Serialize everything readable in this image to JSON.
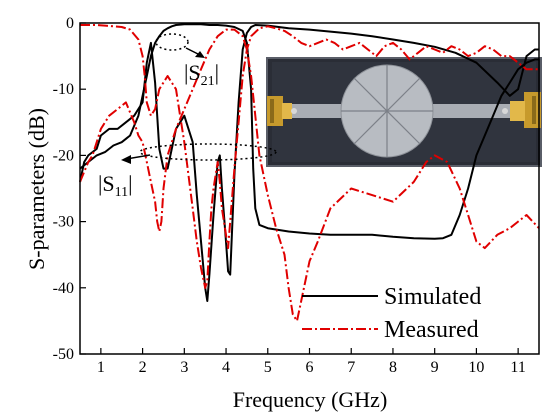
{
  "chart_data": {
    "type": "line",
    "title": "",
    "xlabel": "Frequency (GHz)",
    "ylabel": "S-parameters (dB)",
    "xlim": [
      0.5,
      11.5
    ],
    "ylim": [
      -50,
      0
    ],
    "xticks": [
      1,
      2,
      3,
      4,
      5,
      6,
      7,
      8,
      9,
      10,
      11
    ],
    "yticks": [
      0,
      -10,
      -20,
      -30,
      -40,
      -50
    ],
    "grid": false,
    "legend_position": "bottom-right",
    "annotations": [
      {
        "text": "|S",
        "sub": "21",
        "close": "|"
      },
      {
        "text": "|S",
        "sub": "11",
        "close": "|"
      }
    ],
    "inset": "photograph of fabricated filter: grey rectangular substrate with circular radial-stub resonator and SMA connectors",
    "series": [
      {
        "name": "Simulated",
        "color": "#000000",
        "style": "solid",
        "traces": {
          "S21": {
            "x": [
              0.5,
              0.7,
              0.9,
              1.1,
              1.3,
              1.5,
              1.7,
              1.9,
              2.0,
              2.1,
              2.2,
              2.3,
              2.4,
              2.5,
              2.6,
              2.7,
              2.8,
              3.0,
              3.2,
              3.4,
              3.6,
              3.8,
              4.0,
              4.2,
              4.4,
              4.5,
              4.6,
              4.65,
              4.7,
              4.8,
              5.0,
              5.5,
              6.0,
              6.5,
              7.0,
              7.5,
              8.0,
              8.5,
              9.0,
              9.2,
              9.4,
              9.6,
              9.8,
              10.0,
              10.2,
              10.4,
              10.6,
              10.8,
              11.0,
              11.2,
              11.4,
              11.5
            ],
            "y": [
              -22,
              -21,
              -20,
              -19.5,
              -18.5,
              -18,
              -17,
              -14,
              -11,
              -8,
              -5,
              -3,
              -2,
              -1.2,
              -0.8,
              -0.5,
              -0.3,
              -0.2,
              -0.2,
              -0.2,
              -0.3,
              -0.3,
              -0.4,
              -0.6,
              -1.2,
              -3,
              -10,
              -22,
              -28,
              -30.5,
              -31,
              -31.5,
              -31.8,
              -32,
              -32,
              -32,
              -32.3,
              -32.5,
              -32.6,
              -32.5,
              -32,
              -29,
              -25,
              -20,
              -17,
              -14,
              -11,
              -9,
              -7,
              -6,
              -5.5,
              -5.5
            ]
          },
          "S11": {
            "x": [
              0.5,
              0.6,
              0.7,
              0.8,
              0.9,
              1.0,
              1.2,
              1.4,
              1.6,
              1.8,
              2.0,
              2.1,
              2.2,
              2.3,
              2.4,
              2.5,
              2.6,
              2.8,
              3.0,
              3.2,
              3.3,
              3.4,
              3.5,
              3.55,
              3.6,
              3.7,
              3.8,
              3.85,
              3.9,
              4.0,
              4.05,
              4.1,
              4.2,
              4.3,
              4.4,
              4.5,
              4.6,
              4.7,
              5.0,
              5.5,
              6.0,
              6.5,
              7.0,
              7.5,
              8.0,
              8.5,
              9.0,
              9.5,
              10.0,
              10.5,
              10.8,
              11.0,
              11.2,
              11.4,
              11.5
            ],
            "y": [
              -24,
              -21,
              -20,
              -19.5,
              -19,
              -17,
              -16,
              -16,
              -15,
              -14,
              -12,
              -6,
              -3,
              -9,
              -19,
              -22,
              -22,
              -16,
              -14,
              -18,
              -26,
              -33,
              -40,
              -42,
              -38,
              -29,
              -21,
              -20,
              -25,
              -33,
              -37.5,
              -38,
              -23,
              -12,
              -4,
              -1.5,
              -0.6,
              -0.3,
              -0.4,
              -0.8,
              -1,
              -1.3,
              -1.6,
              -2,
              -2.5,
              -3,
              -3.6,
              -4.5,
              -6,
              -9,
              -11,
              -10,
              -5,
              -4,
              -4
            ]
          }
        }
      },
      {
        "name": "Measured",
        "color": "#e00000",
        "style": "dash-dot",
        "traces": {
          "S21": {
            "x": [
              0.5,
              0.7,
              0.8,
              0.9,
              1.0,
              1.2,
              1.4,
              1.6,
              1.8,
              1.9,
              2.0,
              2.1,
              2.2,
              2.3,
              2.35,
              2.4,
              2.45,
              2.5,
              2.6,
              2.8,
              3.0,
              3.2,
              3.4,
              3.6,
              3.8,
              4.0,
              4.2,
              4.4,
              4.5,
              4.6,
              4.7,
              4.8,
              5.0,
              5.2,
              5.4,
              5.5,
              5.6,
              5.7,
              5.8,
              6.0,
              6.2,
              6.5,
              7.0,
              7.5,
              8.0,
              8.5,
              8.8,
              9.0,
              9.3,
              9.6,
              9.8,
              10.0,
              10.2,
              10.5,
              10.8,
              11.0,
              11.2,
              11.5
            ],
            "y": [
              -24,
              -21,
              -20,
              -18,
              -16,
              -14,
              -13,
              -12,
              -15,
              -17,
              -18,
              -21,
              -24,
              -27,
              -30,
              -31.5,
              -30,
              -25,
              -20,
              -16,
              -13,
              -10,
              -7,
              -4,
              -2,
              -1,
              -1,
              -2,
              -4,
              -8,
              -14,
              -20,
              -26,
              -31,
              -35,
              -40,
              -44,
              -45,
              -42,
              -36,
              -33,
              -28,
              -25,
              -26,
              -27,
              -24,
              -21,
              -20,
              -21,
              -25,
              -29,
              -33,
              -34,
              -32,
              -31,
              -30,
              -29,
              -31
            ]
          },
          "S11": {
            "x": [
              0.5,
              0.7,
              0.9,
              1.1,
              1.3,
              1.5,
              1.7,
              1.9,
              2.0,
              2.05,
              2.1,
              2.2,
              2.3,
              2.4,
              2.6,
              2.8,
              2.9,
              3.0,
              3.1,
              3.2,
              3.3,
              3.4,
              3.5,
              3.55,
              3.6,
              3.65,
              3.7,
              3.8,
              3.85,
              3.9,
              4.0,
              4.05,
              4.1,
              4.2,
              4.3,
              4.4,
              4.5,
              4.6,
              4.8,
              5.0,
              5.2,
              5.4,
              5.6,
              5.8,
              6.0,
              6.2,
              6.4,
              6.6,
              6.8,
              7.0,
              7.2,
              7.4,
              7.6,
              7.8,
              8.0,
              8.2,
              8.4,
              8.6,
              8.8,
              9.0,
              9.2,
              9.4,
              9.6,
              9.8,
              10.0,
              10.2,
              10.4,
              10.6,
              10.8,
              11.0,
              11.2,
              11.4,
              11.5
            ],
            "y": [
              -0.3,
              -0.3,
              -0.3,
              -0.4,
              -0.5,
              -0.6,
              -1,
              -2.5,
              -5,
              -8,
              -12,
              -14,
              -13,
              -10,
              -8,
              -10,
              -14,
              -18,
              -23,
              -28,
              -33,
              -37,
              -40,
              -39,
              -33,
              -28,
              -25,
              -21,
              -24,
              -28,
              -32,
              -34,
              -30,
              -22,
              -15,
              -8,
              -4,
              -2,
              -0.8,
              -0.5,
              -0.8,
              -1.2,
              -2,
              -3,
              -3.5,
              -3,
              -2.5,
              -3,
              -4,
              -3.5,
              -3,
              -4,
              -5,
              -3.5,
              -3,
              -4,
              -5.5,
              -4.5,
              -3.5,
              -4,
              -4.5,
              -3.5,
              -4,
              -5,
              -4.5,
              -3.5,
              -4,
              -5,
              -5,
              -6,
              -7,
              -7,
              -7
            ]
          }
        }
      }
    ]
  }
}
